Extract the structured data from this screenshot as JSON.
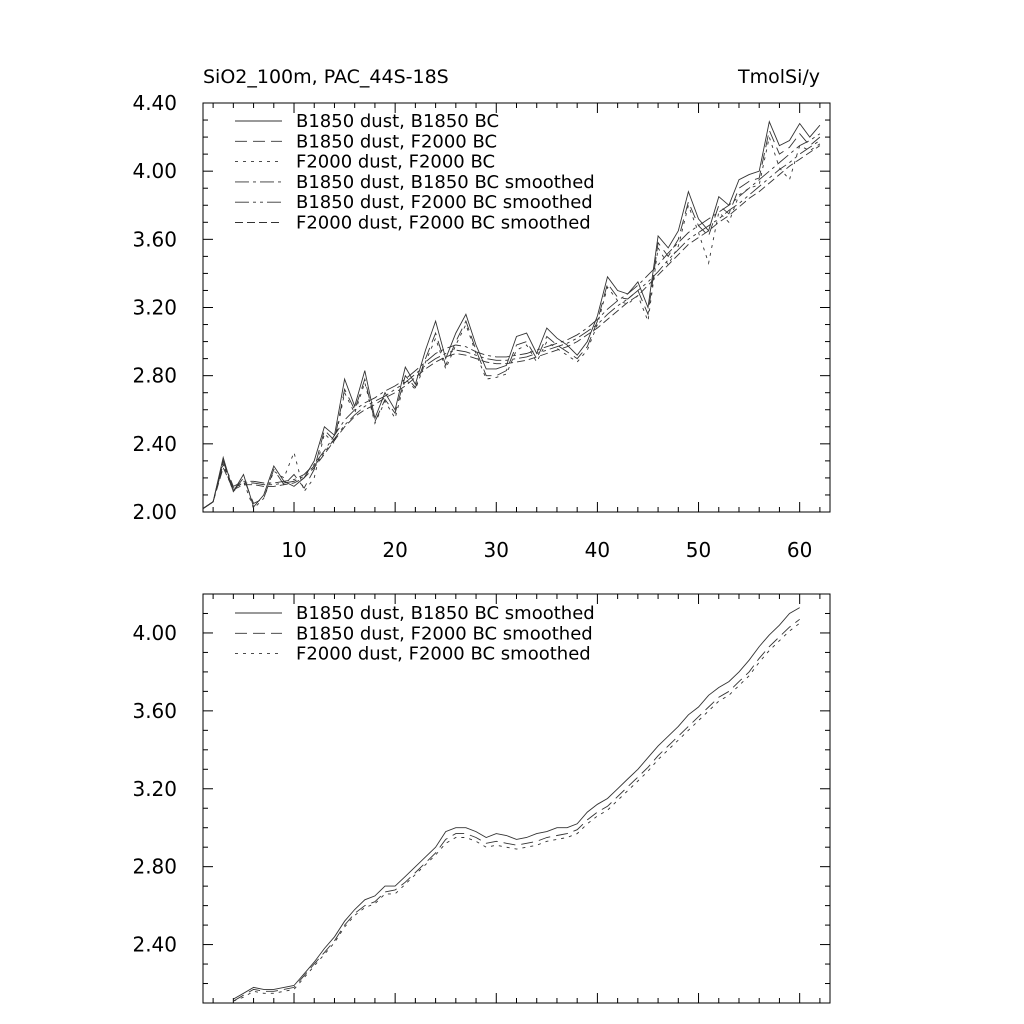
{
  "chart_data": [
    {
      "type": "line",
      "title": "SiO2_100m, PAC_44S-18S",
      "unit": "TmolSi/y",
      "xlim": [
        1,
        63
      ],
      "ylim": [
        2.0,
        4.4
      ],
      "x_major_ticks": [
        10,
        20,
        30,
        40,
        50,
        60
      ],
      "x_tick_labels": [
        "10",
        "20",
        "30",
        "40",
        "50",
        "60"
      ],
      "y_major_ticks": [
        2.0,
        2.4,
        2.8,
        3.2,
        3.6,
        4.0,
        4.4
      ],
      "y_tick_labels": [
        "2.00",
        "2.40",
        "2.80",
        "3.20",
        "3.60",
        "4.00",
        "4.40"
      ],
      "legend_position": "top-left",
      "grid": false,
      "x": [
        1,
        2,
        3,
        4,
        5,
        6,
        7,
        8,
        9,
        10,
        11,
        12,
        13,
        14,
        15,
        16,
        17,
        18,
        19,
        20,
        21,
        22,
        23,
        24,
        25,
        26,
        27,
        28,
        29,
        30,
        31,
        32,
        33,
        34,
        35,
        36,
        37,
        38,
        39,
        40,
        41,
        42,
        43,
        44,
        45,
        46,
        47,
        48,
        49,
        50,
        51,
        52,
        53,
        54,
        55,
        56,
        57,
        58,
        59,
        60,
        61,
        62
      ],
      "series": [
        {
          "name": "B1850 dust, B1850 BC",
          "dash": "",
          "values": [
            2.02,
            2.06,
            2.32,
            2.12,
            2.22,
            2.03,
            2.1,
            2.27,
            2.18,
            2.15,
            2.2,
            2.3,
            2.5,
            2.45,
            2.78,
            2.62,
            2.83,
            2.55,
            2.7,
            2.6,
            2.85,
            2.75,
            2.95,
            3.12,
            2.9,
            3.05,
            3.16,
            2.98,
            2.84,
            2.84,
            2.86,
            3.03,
            3.05,
            2.93,
            3.08,
            3.02,
            2.98,
            2.92,
            3.0,
            3.15,
            3.38,
            3.3,
            3.28,
            3.35,
            3.2,
            3.62,
            3.55,
            3.65,
            3.88,
            3.72,
            3.65,
            3.85,
            3.8,
            3.95,
            3.98,
            4.0,
            4.29,
            4.15,
            4.18,
            4.28,
            4.2,
            4.27
          ]
        },
        {
          "name": "B1850 dust, F2000 BC",
          "dash": "12,6",
          "values": [
            2.02,
            2.06,
            2.3,
            2.12,
            2.2,
            2.05,
            2.08,
            2.25,
            2.16,
            2.22,
            2.14,
            2.25,
            2.48,
            2.42,
            2.72,
            2.6,
            2.78,
            2.53,
            2.66,
            2.58,
            2.8,
            2.73,
            2.9,
            3.05,
            2.86,
            3.0,
            3.12,
            2.95,
            2.8,
            2.8,
            2.83,
            2.98,
            3.0,
            2.9,
            3.03,
            2.98,
            2.94,
            2.9,
            2.97,
            3.12,
            3.34,
            3.26,
            3.25,
            3.3,
            3.16,
            3.58,
            3.5,
            3.6,
            3.82,
            3.68,
            3.62,
            3.8,
            3.75,
            3.9,
            3.94,
            3.96,
            4.24,
            4.1,
            4.14,
            4.22,
            4.15,
            4.2
          ]
        },
        {
          "name": "F2000 dust, F2000 BC",
          "dash": "3,5",
          "values": [
            2.02,
            2.06,
            2.28,
            2.12,
            2.18,
            2.02,
            2.08,
            2.24,
            2.2,
            2.35,
            2.12,
            2.2,
            2.46,
            2.4,
            2.7,
            2.58,
            2.76,
            2.52,
            2.65,
            2.55,
            2.78,
            2.72,
            2.88,
            3.02,
            2.84,
            2.98,
            3.1,
            2.93,
            2.78,
            2.79,
            2.81,
            2.95,
            2.98,
            2.88,
            3.0,
            2.96,
            2.92,
            2.88,
            2.95,
            3.1,
            3.32,
            3.24,
            3.22,
            3.27,
            3.12,
            3.55,
            3.45,
            3.56,
            3.8,
            3.64,
            3.46,
            3.76,
            3.7,
            3.86,
            3.9,
            3.92,
            4.2,
            4.02,
            3.95,
            4.15,
            4.12,
            4.16
          ]
        },
        {
          "name": "B1850 dust, B1850 BC smoothed",
          "dash": "14,4,3,4",
          "values": [
            2.02,
            2.06,
            2.3,
            2.15,
            2.18,
            2.18,
            2.17,
            2.17,
            2.18,
            2.19,
            2.22,
            2.28,
            2.36,
            2.45,
            2.54,
            2.6,
            2.64,
            2.67,
            2.71,
            2.74,
            2.78,
            2.83,
            2.88,
            2.93,
            2.96,
            2.98,
            2.97,
            2.94,
            2.92,
            2.91,
            2.91,
            2.92,
            2.93,
            2.95,
            2.97,
            2.99,
            3.01,
            3.04,
            3.08,
            3.13,
            3.19,
            3.24,
            3.28,
            3.33,
            3.39,
            3.45,
            3.52,
            3.58,
            3.64,
            3.68,
            3.72,
            3.76,
            3.8,
            3.85,
            3.9,
            3.95,
            4.0,
            4.05,
            4.1,
            4.15,
            4.18,
            4.22
          ]
        },
        {
          "name": "B1850 dust, F2000 BC smoothed",
          "dash": "14,4,3,4,3,4",
          "values": [
            2.02,
            2.06,
            2.28,
            2.14,
            2.17,
            2.17,
            2.16,
            2.16,
            2.17,
            2.18,
            2.21,
            2.27,
            2.35,
            2.43,
            2.51,
            2.57,
            2.62,
            2.65,
            2.68,
            2.72,
            2.76,
            2.81,
            2.86,
            2.9,
            2.93,
            2.95,
            2.94,
            2.92,
            2.9,
            2.89,
            2.89,
            2.9,
            2.91,
            2.93,
            2.95,
            2.97,
            2.99,
            3.02,
            3.06,
            3.1,
            3.16,
            3.21,
            3.25,
            3.3,
            3.35,
            3.41,
            3.48,
            3.54,
            3.6,
            3.64,
            3.68,
            3.72,
            3.77,
            3.81,
            3.86,
            3.91,
            3.96,
            4.01,
            4.05,
            4.1,
            4.14,
            4.18
          ]
        },
        {
          "name": "F2000 dust, F2000 BC smoothed",
          "dash": "8,4",
          "values": [
            2.02,
            2.06,
            2.26,
            2.13,
            2.16,
            2.16,
            2.15,
            2.15,
            2.16,
            2.17,
            2.2,
            2.26,
            2.34,
            2.42,
            2.5,
            2.56,
            2.6,
            2.63,
            2.67,
            2.7,
            2.74,
            2.79,
            2.84,
            2.88,
            2.91,
            2.93,
            2.92,
            2.9,
            2.88,
            2.87,
            2.87,
            2.88,
            2.89,
            2.91,
            2.93,
            2.95,
            2.97,
            3.0,
            3.04,
            3.08,
            3.13,
            3.18,
            3.23,
            3.27,
            3.33,
            3.39,
            3.45,
            3.51,
            3.57,
            3.61,
            3.65,
            3.7,
            3.74,
            3.79,
            3.84,
            3.88,
            3.93,
            3.98,
            4.03,
            4.07,
            4.11,
            4.15
          ]
        }
      ]
    },
    {
      "type": "line",
      "xlim": [
        1,
        63
      ],
      "ylim": [
        2.1,
        4.2
      ],
      "x_major_ticks": [
        10,
        20,
        30,
        40,
        50,
        60
      ],
      "y_major_ticks": [
        2.4,
        2.8,
        3.2,
        3.6,
        4.0
      ],
      "y_tick_labels": [
        "2.40",
        "2.80",
        "3.20",
        "3.60",
        "4.00"
      ],
      "legend_position": "top-left",
      "grid": false,
      "x": [
        4,
        5,
        6,
        7,
        8,
        9,
        10,
        11,
        12,
        13,
        14,
        15,
        16,
        17,
        18,
        19,
        20,
        21,
        22,
        23,
        24,
        25,
        26,
        27,
        28,
        29,
        30,
        31,
        32,
        33,
        34,
        35,
        36,
        37,
        38,
        39,
        40,
        41,
        42,
        43,
        44,
        45,
        46,
        47,
        48,
        49,
        50,
        51,
        52,
        53,
        54,
        55,
        56,
        57,
        58,
        59,
        60
      ],
      "series": [
        {
          "name": "B1850 dust, B1850 BC smoothed",
          "dash": "",
          "values": [
            2.12,
            2.15,
            2.18,
            2.17,
            2.17,
            2.18,
            2.19,
            2.25,
            2.31,
            2.38,
            2.44,
            2.52,
            2.58,
            2.63,
            2.65,
            2.7,
            2.7,
            2.75,
            2.8,
            2.85,
            2.9,
            2.98,
            3.0,
            3.0,
            2.98,
            2.95,
            2.97,
            2.96,
            2.94,
            2.95,
            2.97,
            2.98,
            3.0,
            3.0,
            3.02,
            3.08,
            3.12,
            3.15,
            3.2,
            3.25,
            3.3,
            3.36,
            3.42,
            3.47,
            3.52,
            3.58,
            3.62,
            3.68,
            3.72,
            3.75,
            3.8,
            3.86,
            3.93,
            3.99,
            4.04,
            4.1,
            4.13
          ]
        },
        {
          "name": "B1850 dust, F2000 BC smoothed",
          "dash": "12,6",
          "values": [
            2.11,
            2.14,
            2.17,
            2.16,
            2.16,
            2.17,
            2.18,
            2.24,
            2.3,
            2.36,
            2.42,
            2.5,
            2.56,
            2.6,
            2.62,
            2.67,
            2.68,
            2.72,
            2.77,
            2.82,
            2.87,
            2.94,
            2.97,
            2.97,
            2.95,
            2.92,
            2.93,
            2.92,
            2.91,
            2.92,
            2.93,
            2.95,
            2.96,
            2.97,
            2.99,
            3.04,
            3.08,
            3.11,
            3.16,
            3.21,
            3.26,
            3.31,
            3.37,
            3.42,
            3.47,
            3.52,
            3.57,
            3.62,
            3.67,
            3.7,
            3.75,
            3.8,
            3.87,
            3.93,
            3.98,
            4.03,
            4.07
          ]
        },
        {
          "name": "F2000 dust, F2000 BC smoothed",
          "dash": "3,5",
          "values": [
            2.11,
            2.13,
            2.16,
            2.15,
            2.15,
            2.16,
            2.17,
            2.23,
            2.29,
            2.35,
            2.41,
            2.49,
            2.55,
            2.59,
            2.61,
            2.66,
            2.66,
            2.71,
            2.76,
            2.81,
            2.86,
            2.92,
            2.95,
            2.95,
            2.93,
            2.9,
            2.91,
            2.9,
            2.89,
            2.9,
            2.91,
            2.93,
            2.94,
            2.95,
            2.97,
            3.02,
            3.06,
            3.09,
            3.14,
            3.19,
            3.24,
            3.29,
            3.35,
            3.4,
            3.45,
            3.5,
            3.55,
            3.6,
            3.65,
            3.68,
            3.73,
            3.78,
            3.85,
            3.91,
            3.96,
            4.01,
            4.05
          ]
        }
      ]
    }
  ]
}
